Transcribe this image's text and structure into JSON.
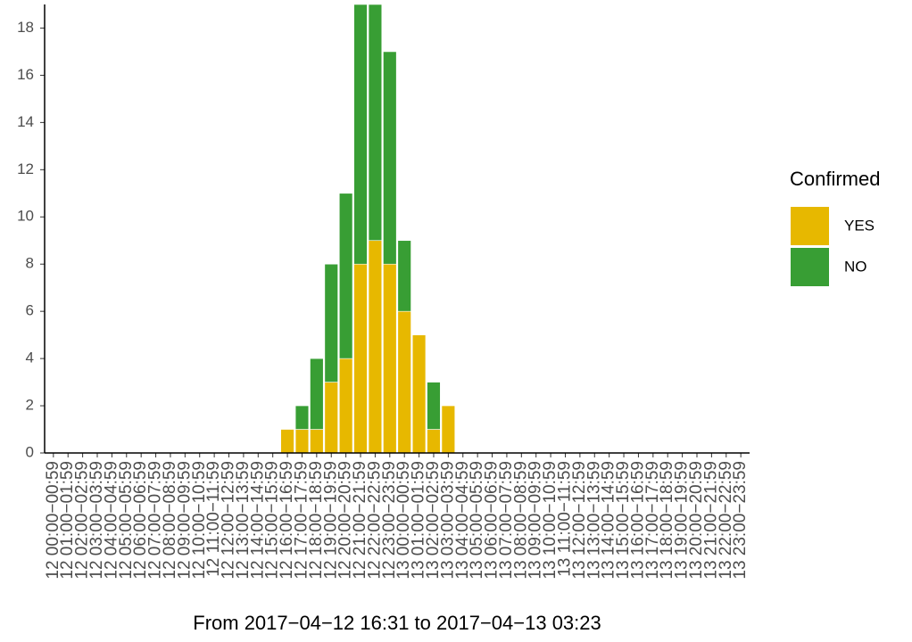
{
  "chart_data": {
    "type": "stacked_bar",
    "x_label": "From 2017−04−12 16:31 to 2017−04−13 03:23",
    "legend_title": "Confirmed",
    "categories": [
      "12 00:00−00:59",
      "12 01:00−01:59",
      "12 02:00−02:59",
      "12 03:00−03:59",
      "12 04:00−04:59",
      "12 05:00−05:59",
      "12 06:00−06:59",
      "12 07:00−07:59",
      "12 08:00−08:59",
      "12 09:00−09:59",
      "12 10:00−10:59",
      "12 11:00−11:59",
      "12 12:00−12:59",
      "12 13:00−13:59",
      "12 14:00−14:59",
      "12 15:00−15:59",
      "12 16:00−16:59",
      "12 17:00−17:59",
      "12 18:00−18:59",
      "12 19:00−19:59",
      "12 20:00−20:59",
      "12 21:00−21:59",
      "12 22:00−22:59",
      "12 23:00−23:59",
      "13 00:00−00:59",
      "13 01:00−01:59",
      "13 02:00−02:59",
      "13 03:00−03:59",
      "13 04:00−04:59",
      "13 05:00−05:59",
      "13 06:00−06:59",
      "13 07:00−07:59",
      "13 08:00−08:59",
      "13 09:00−09:59",
      "13 10:00−10:59",
      "13 11:00−11:59",
      "13 12:00−12:59",
      "13 13:00−13:59",
      "13 14:00−14:59",
      "13 15:00−15:59",
      "13 16:00−16:59",
      "13 17:00−17:59",
      "13 18:00−18:59",
      "13 19:00−19:59",
      "13 20:00−20:59",
      "13 21:00−21:59",
      "13 22:00−22:59",
      "13 23:00−23:59"
    ],
    "series": [
      {
        "name": "YES",
        "color": "#E7B800",
        "values": [
          0,
          0,
          0,
          0,
          0,
          0,
          0,
          0,
          0,
          0,
          0,
          0,
          0,
          0,
          0,
          0,
          1,
          1,
          1,
          3,
          4,
          8,
          9,
          8,
          6,
          5,
          1,
          2,
          0,
          0,
          0,
          0,
          0,
          0,
          0,
          0,
          0,
          0,
          0,
          0,
          0,
          0,
          0,
          0,
          0,
          0,
          0,
          0
        ]
      },
      {
        "name": "NO",
        "color": "#389E34",
        "values": [
          0,
          0,
          0,
          0,
          0,
          0,
          0,
          0,
          0,
          0,
          0,
          0,
          0,
          0,
          0,
          0,
          0,
          1,
          3,
          5,
          7,
          11,
          10,
          9,
          3,
          0,
          2,
          0,
          0,
          0,
          0,
          0,
          0,
          0,
          0,
          0,
          0,
          0,
          0,
          0,
          0,
          0,
          0,
          0,
          0,
          0,
          0,
          0
        ]
      }
    ],
    "ylim": [
      0,
      19
    ],
    "yticks": [
      0,
      2,
      4,
      6,
      8,
      10,
      12,
      14,
      16,
      18
    ]
  }
}
